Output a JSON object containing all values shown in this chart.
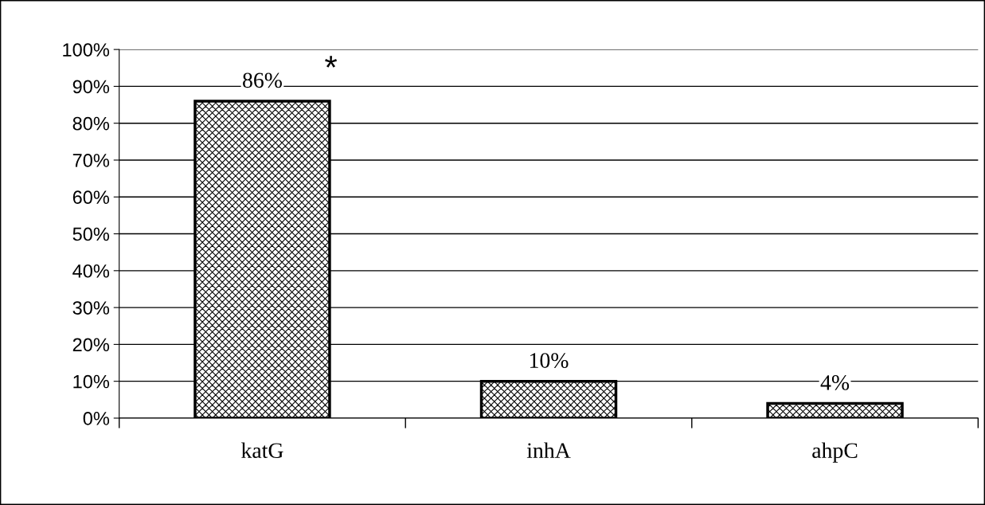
{
  "chart_data": {
    "type": "bar",
    "categories": [
      "katG",
      "inhA",
      "ahpC"
    ],
    "values": [
      86,
      10,
      4
    ],
    "value_labels": [
      "86%",
      "10%",
      "4%"
    ],
    "color": "#000000",
    "ylim": [
      0,
      100
    ],
    "yticks": [
      {
        "value": 0,
        "label": "0%"
      },
      {
        "value": 10,
        "label": "10%"
      },
      {
        "value": 20,
        "label": "20%"
      },
      {
        "value": 30,
        "label": "30%"
      },
      {
        "value": 40,
        "label": "40%"
      },
      {
        "value": 50,
        "label": "50%"
      },
      {
        "value": 60,
        "label": "60%"
      },
      {
        "value": 70,
        "label": "70%"
      },
      {
        "value": 80,
        "label": "80%"
      },
      {
        "value": 90,
        "label": "90%"
      },
      {
        "value": 100,
        "label": "100%"
      }
    ],
    "grid": "y",
    "annotations": [
      {
        "text": "*",
        "x": "katG",
        "y": 86
      }
    ]
  }
}
